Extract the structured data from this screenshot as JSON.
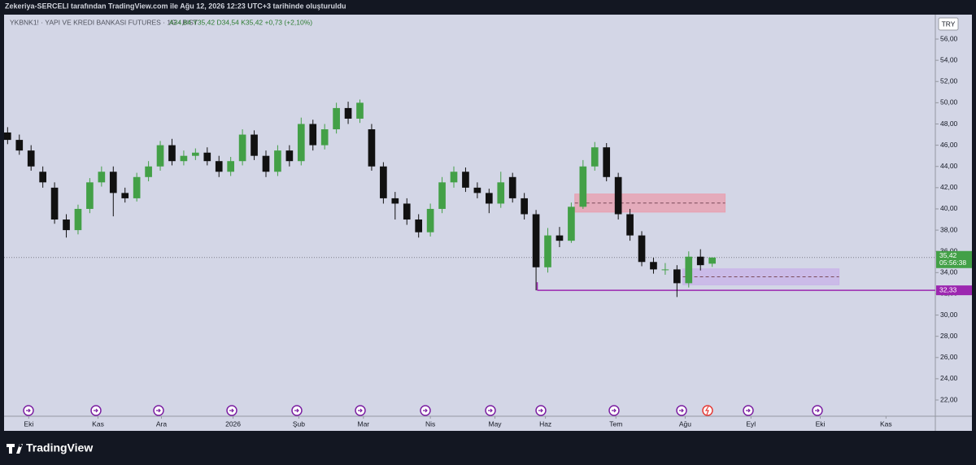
{
  "chart_data": {
    "type": "candlestick",
    "attribution": "Zekeriya-SERCELI tarafından TradingView.com ile Ağu 12, 2026 12:23 UTC+3 tarihinde oluşturuldu",
    "symbol": "YKBNK1! · YAPI VE KREDI BANKASI FUTURES · 1G · BIST",
    "ohlc_text": "A34,84 Y35,42 D34,54 K35,42 +0,73 (+2,10%)",
    "currency": "TRY",
    "brand": "TradingView",
    "up_color": "#43a047",
    "down_color": "#111111",
    "x": [
      0,
      1,
      2,
      3,
      4,
      5,
      6,
      7,
      8,
      9,
      10,
      11,
      12,
      13,
      14,
      15,
      16,
      17,
      18,
      19,
      20,
      21,
      22,
      23,
      24,
      25,
      26,
      27,
      28,
      29,
      30,
      31,
      32,
      33,
      34,
      35,
      36,
      37,
      38,
      39,
      40,
      41,
      42,
      43,
      44,
      45,
      46,
      47,
      48,
      49,
      50,
      51,
      52,
      53,
      54,
      55,
      56,
      57,
      58,
      59,
      60
    ],
    "open": [
      47.2,
      46.5,
      45.5,
      43.5,
      42,
      39,
      38,
      40,
      42.5,
      43.5,
      41.5,
      41,
      43,
      44,
      46,
      44.5,
      45,
      45.3,
      44.5,
      43.5,
      44.5,
      47,
      45,
      43.5,
      45.5,
      44.5,
      48,
      46,
      47.5,
      49.5,
      48.5,
      47.5,
      44,
      41,
      40.5,
      39,
      37.8,
      40,
      42.5,
      43.5,
      42,
      41.5,
      40.5,
      43,
      41,
      39.5,
      34.5,
      37.5,
      37,
      40.2,
      44,
      45.8,
      43,
      39.5,
      37.5,
      35,
      34.3,
      34.3,
      33,
      35.5,
      34.84
    ],
    "high": [
      47.7,
      47.0,
      46.0,
      44.0,
      42.5,
      39.5,
      40.4,
      42.9,
      44.0,
      44.0,
      42.0,
      43.4,
      44.5,
      46.4,
      46.6,
      45.5,
      45.7,
      45.8,
      45.0,
      44.9,
      47.5,
      47.4,
      45.5,
      46.0,
      46.0,
      48.6,
      48.4,
      48.0,
      50.0,
      50.1,
      50.3,
      48.0,
      44.4,
      41.6,
      41.0,
      39.5,
      40.5,
      43.0,
      44.0,
      43.9,
      42.5,
      41.9,
      43.5,
      43.4,
      41.5,
      39.9,
      38.2,
      38.3,
      40.6,
      44.6,
      46.3,
      46.2,
      43.4,
      40.0,
      37.9,
      35.4,
      34.9,
      34.7,
      36.0,
      36.2,
      35.42
    ],
    "low": [
      46.1,
      45.1,
      43.6,
      42.0,
      38.6,
      37.3,
      37.6,
      39.6,
      42.1,
      39.3,
      40.6,
      40.7,
      42.6,
      43.6,
      44.1,
      44.1,
      44.6,
      44.1,
      43.0,
      43.1,
      44.1,
      44.6,
      43.0,
      43.1,
      44.0,
      44.1,
      45.5,
      45.6,
      47.1,
      48.0,
      48.1,
      43.6,
      40.5,
      39.0,
      38.5,
      37.3,
      37.4,
      39.6,
      42.0,
      41.6,
      41.0,
      39.6,
      40.1,
      40.6,
      39.0,
      32.33,
      34.0,
      36.4,
      36.8,
      40.0,
      43.6,
      42.6,
      39.0,
      37.0,
      34.6,
      33.9,
      33.8,
      31.7,
      32.6,
      34.2,
      34.54
    ],
    "close": [
      46.5,
      45.5,
      44,
      42.5,
      39,
      38,
      40,
      42.5,
      43.5,
      41.5,
      41,
      43,
      44,
      46,
      44.5,
      45,
      45.3,
      44.5,
      43.5,
      44.5,
      47,
      45,
      43.5,
      45.5,
      44.5,
      48,
      46,
      47.5,
      49.5,
      48.5,
      50,
      44,
      41,
      40.5,
      39,
      37.8,
      40,
      42.5,
      43.5,
      42,
      41.5,
      40.5,
      42.5,
      41,
      39.5,
      34.5,
      37.5,
      37,
      40.2,
      44,
      45.8,
      43,
      39.5,
      37.5,
      35,
      34.3,
      34.3,
      33,
      35.5,
      34.7,
      35.42
    ],
    "xlim": [
      -0.3,
      79
    ],
    "xticks": [
      {
        "value": 1.8,
        "label": "Eki"
      },
      {
        "value": 7.7,
        "label": "Kas"
      },
      {
        "value": 13.1,
        "label": "Ara"
      },
      {
        "value": 19.2,
        "label": "2026"
      },
      {
        "value": 24.8,
        "label": "Şub"
      },
      {
        "value": 30.3,
        "label": "Mar"
      },
      {
        "value": 36.0,
        "label": "Nis"
      },
      {
        "value": 41.5,
        "label": "May"
      },
      {
        "value": 45.8,
        "label": "Haz"
      },
      {
        "value": 51.8,
        "label": "Tem"
      },
      {
        "value": 57.7,
        "label": "Ağu"
      },
      {
        "value": 63.3,
        "label": "Eyl"
      },
      {
        "value": 69.2,
        "label": "Eki"
      },
      {
        "value": 74.8,
        "label": "Kas"
      }
    ],
    "ylim": [
      20.47,
      58.3
    ],
    "yticks": [
      {
        "value": 22,
        "label": "22,00"
      },
      {
        "value": 24,
        "label": "24,00"
      },
      {
        "value": 26,
        "label": "26,00"
      },
      {
        "value": 28,
        "label": "28,00"
      },
      {
        "value": 30,
        "label": "30,00"
      },
      {
        "value": 32,
        "label": "32,00"
      },
      {
        "value": 34,
        "label": "34,00"
      },
      {
        "value": 36,
        "label": "36,00"
      },
      {
        "value": 38,
        "label": "38,00"
      },
      {
        "value": 40,
        "label": "40,00"
      },
      {
        "value": 42,
        "label": "42,00"
      },
      {
        "value": 44,
        "label": "44,00"
      },
      {
        "value": 46,
        "label": "46,00"
      },
      {
        "value": 48,
        "label": "48,00"
      },
      {
        "value": 50,
        "label": "50,00"
      },
      {
        "value": 52,
        "label": "52,00"
      },
      {
        "value": 54,
        "label": "54,00"
      },
      {
        "value": 56,
        "label": "56,00"
      }
    ],
    "zones": [
      {
        "x": [
          48.3,
          61.1
        ],
        "y": [
          39.7,
          41.4
        ],
        "color": "#e8a0b0"
      },
      {
        "x": [
          57.5,
          70.8
        ],
        "y": [
          32.85,
          34.35
        ],
        "color": "#c9b4e8"
      }
    ],
    "level": {
      "value": 32.33,
      "label": "32,33",
      "start": 45.1,
      "color": "#9c27b0"
    },
    "last_price": {
      "value": 35.42,
      "label": "35,42"
    },
    "countdown": "05:56:38"
  }
}
